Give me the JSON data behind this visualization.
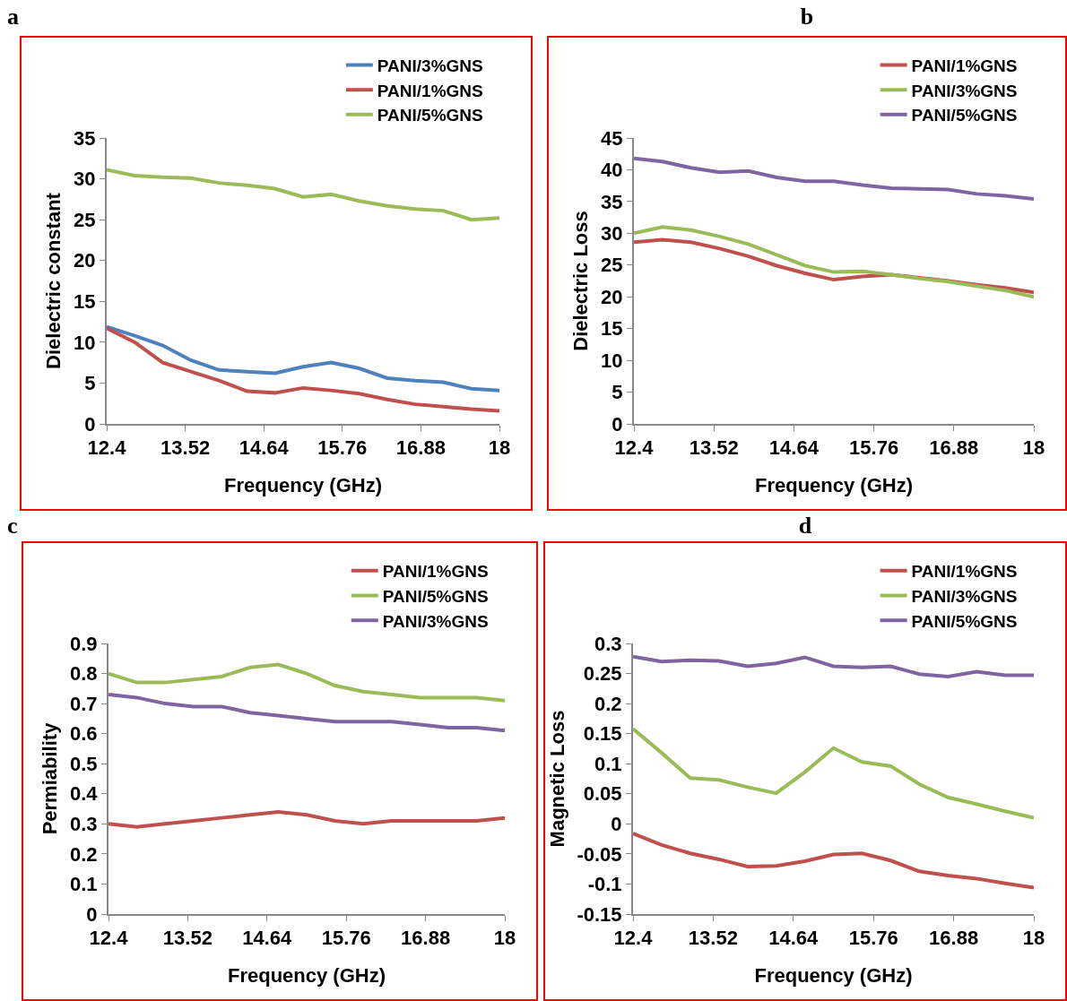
{
  "chart_data": [
    {
      "type": "line",
      "title": "a",
      "xlabel": "Frequency (GHz)",
      "ylabel": "Dielectric constant",
      "x": [
        12.4,
        12.8,
        13.2,
        13.6,
        14.0,
        14.4,
        14.8,
        15.2,
        15.6,
        16.0,
        16.4,
        16.8,
        17.2,
        17.6,
        18.0
      ],
      "series": [
        {
          "name": "PANI/3%GNS",
          "color": "#4f81bd",
          "values": [
            11.9,
            10.8,
            9.6,
            7.8,
            6.6,
            6.4,
            6.2,
            7.0,
            7.5,
            6.8,
            5.6,
            5.3,
            5.1,
            4.3,
            4.1
          ]
        },
        {
          "name": "PANI/1%GNS",
          "color": "#c0504d",
          "values": [
            11.7,
            10.0,
            7.5,
            6.4,
            5.3,
            4.0,
            3.8,
            4.4,
            4.1,
            3.7,
            3.0,
            2.4,
            2.1,
            1.8,
            1.6
          ]
        },
        {
          "name": "PANI/5%GNS",
          "color": "#9bbb59",
          "values": [
            31.1,
            30.4,
            30.2,
            30.1,
            29.5,
            29.2,
            28.8,
            27.8,
            28.1,
            27.3,
            26.7,
            26.3,
            26.1,
            25.0,
            25.2
          ]
        }
      ],
      "xlim": [
        12.4,
        18
      ],
      "xticks": [
        12.4,
        13.52,
        14.64,
        15.76,
        16.88,
        18
      ],
      "ylim": [
        0,
        35
      ],
      "yticks": [
        0,
        5,
        10,
        15,
        20,
        25,
        30,
        35
      ],
      "grid": false,
      "legend": "top right",
      "line_style": "solid",
      "marker": "none"
    },
    {
      "type": "line",
      "title": "b",
      "xlabel": "Frequency (GHz)",
      "ylabel": "Dielectric Loss",
      "x": [
        12.4,
        12.8,
        13.2,
        13.6,
        14.0,
        14.4,
        14.8,
        15.2,
        15.6,
        16.0,
        16.4,
        16.8,
        17.2,
        17.6,
        18.0
      ],
      "series": [
        {
          "name": "PANI/1%GNS",
          "color": "#c0504d",
          "values": [
            28.6,
            29.0,
            28.6,
            27.6,
            26.4,
            24.9,
            23.7,
            22.7,
            23.2,
            23.5,
            23.0,
            22.5,
            21.9,
            21.4,
            20.7
          ]
        },
        {
          "name": "PANI/3%GNS",
          "color": "#9bbb59",
          "values": [
            30.0,
            31.0,
            30.5,
            29.5,
            28.3,
            26.6,
            24.9,
            23.9,
            24.0,
            23.5,
            22.9,
            22.4,
            21.7,
            21.0,
            20.0
          ]
        },
        {
          "name": "PANI/5%GNS",
          "color": "#8064a2",
          "values": [
            41.8,
            41.3,
            40.3,
            39.6,
            39.8,
            38.8,
            38.2,
            38.2,
            37.6,
            37.1,
            37.0,
            36.9,
            36.2,
            35.9,
            35.4
          ]
        }
      ],
      "xlim": [
        12.4,
        18
      ],
      "xticks": [
        12.4,
        13.52,
        14.64,
        15.76,
        16.88,
        18
      ],
      "ylim": [
        0,
        45
      ],
      "yticks": [
        0,
        5,
        10,
        15,
        20,
        25,
        30,
        35,
        40,
        45
      ],
      "grid": false,
      "legend": "top right",
      "line_style": "solid",
      "marker": "none"
    },
    {
      "type": "line",
      "title": "c",
      "xlabel": "Frequency (GHz)",
      "ylabel": "Permiability",
      "x": [
        12.4,
        12.8,
        13.2,
        13.6,
        14.0,
        14.4,
        14.8,
        15.2,
        15.6,
        16.0,
        16.4,
        16.8,
        17.2,
        17.6,
        18.0
      ],
      "series": [
        {
          "name": "PANI/1%GNS",
          "color": "#c0504d",
          "values": [
            0.3,
            0.29,
            0.3,
            0.31,
            0.32,
            0.33,
            0.34,
            0.33,
            0.31,
            0.3,
            0.31,
            0.31,
            0.31,
            0.31,
            0.32
          ]
        },
        {
          "name": "PANI/5%GNS",
          "color": "#9bbb59",
          "values": [
            0.8,
            0.77,
            0.77,
            0.78,
            0.79,
            0.82,
            0.83,
            0.8,
            0.76,
            0.74,
            0.73,
            0.72,
            0.72,
            0.72,
            0.71
          ]
        },
        {
          "name": "PANI/3%GNS",
          "color": "#8064a2",
          "values": [
            0.73,
            0.72,
            0.7,
            0.69,
            0.69,
            0.67,
            0.66,
            0.65,
            0.64,
            0.64,
            0.64,
            0.63,
            0.62,
            0.62,
            0.61
          ]
        }
      ],
      "xlim": [
        12.4,
        18
      ],
      "xticks": [
        12.4,
        13.52,
        14.64,
        15.76,
        16.88,
        18
      ],
      "ylim": [
        0,
        0.9
      ],
      "yticks": [
        0,
        0.1,
        0.2,
        0.3,
        0.4,
        0.5,
        0.6,
        0.7,
        0.8,
        0.9
      ],
      "grid": false,
      "legend": "top right",
      "line_style": "solid",
      "marker": "none"
    },
    {
      "type": "line",
      "title": "d",
      "xlabel": "Frequency (GHz)",
      "ylabel": "Magnetic Loss",
      "x": [
        12.4,
        12.8,
        13.2,
        13.6,
        14.0,
        14.4,
        14.8,
        15.2,
        15.6,
        16.0,
        16.4,
        16.8,
        17.2,
        17.6,
        18.0
      ],
      "series": [
        {
          "name": "PANI/1%GNS",
          "color": "#c0504d",
          "values": [
            -0.016,
            -0.035,
            -0.049,
            -0.059,
            -0.071,
            -0.07,
            -0.062,
            -0.051,
            -0.049,
            -0.061,
            -0.079,
            -0.086,
            -0.091,
            -0.099,
            -0.106
          ]
        },
        {
          "name": "PANI/3%GNS",
          "color": "#9bbb59",
          "values": [
            0.158,
            0.118,
            0.076,
            0.073,
            0.061,
            0.051,
            0.086,
            0.126,
            0.103,
            0.096,
            0.066,
            0.044,
            0.033,
            0.021,
            0.01
          ]
        },
        {
          "name": "PANI/5%GNS",
          "color": "#8064a2",
          "values": [
            0.278,
            0.27,
            0.272,
            0.271,
            0.262,
            0.267,
            0.277,
            0.262,
            0.26,
            0.262,
            0.249,
            0.245,
            0.253,
            0.247,
            0.247
          ]
        }
      ],
      "xlim": [
        12.4,
        18
      ],
      "xticks": [
        12.4,
        13.52,
        14.64,
        15.76,
        16.88,
        18
      ],
      "ylim": [
        -0.15,
        0.3
      ],
      "yticks": [
        -0.15,
        -0.1,
        -0.05,
        0,
        0.05,
        0.1,
        0.15,
        0.2,
        0.25,
        0.3
      ],
      "grid": false,
      "legend": "top right",
      "line_style": "solid",
      "marker": "none"
    }
  ]
}
